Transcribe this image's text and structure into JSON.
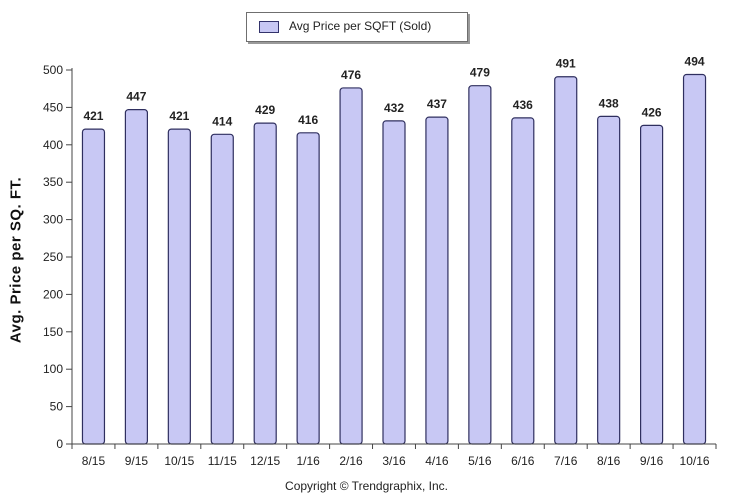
{
  "legend": {
    "label": "Avg Price per SQFT (Sold)"
  },
  "copyright": "Copyright © Trendgraphix, Inc.",
  "colors": {
    "bar_fill": "#c8c8f4",
    "bar_stroke": "#2f2f5f",
    "axis": "#444444",
    "text": "#222222"
  },
  "chart_data": {
    "type": "bar",
    "title": "",
    "xlabel": "",
    "ylabel": "Avg. Price per SQ. FT.",
    "ylim": [
      0,
      500
    ],
    "yticks": [
      0,
      50,
      100,
      150,
      200,
      250,
      300,
      350,
      400,
      450,
      500
    ],
    "grid": false,
    "legend_position": "top-center",
    "categories": [
      "8/15",
      "9/15",
      "10/15",
      "11/15",
      "12/15",
      "1/16",
      "2/16",
      "3/16",
      "4/16",
      "5/16",
      "6/16",
      "7/16",
      "8/16",
      "9/16",
      "10/16"
    ],
    "series": [
      {
        "name": "Avg Price per SQFT (Sold)",
        "values": [
          421,
          447,
          421,
          414,
          429,
          416,
          476,
          432,
          437,
          479,
          436,
          491,
          438,
          426,
          494
        ]
      }
    ]
  }
}
